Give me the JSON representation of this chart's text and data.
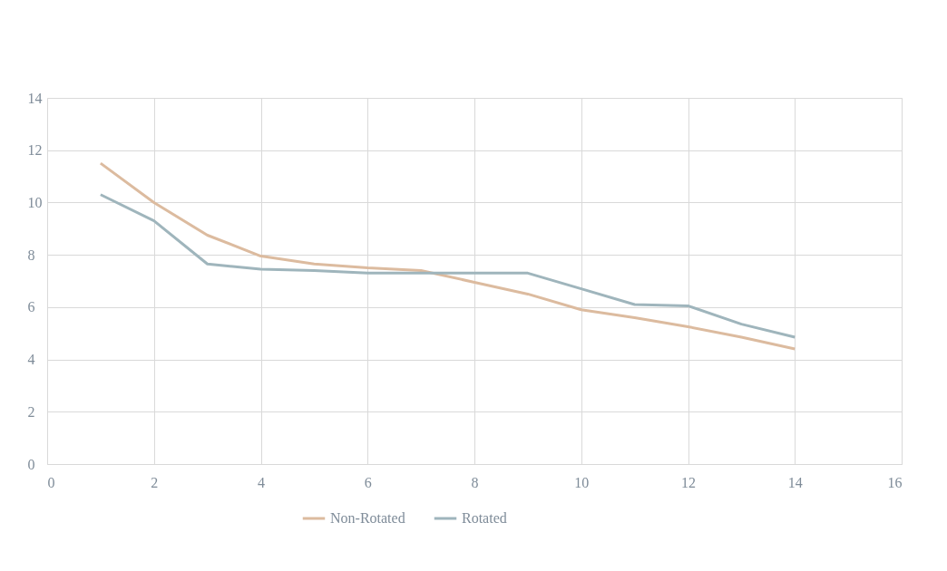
{
  "chart_data": {
    "type": "line",
    "x": [
      1,
      2,
      3,
      4,
      5,
      6,
      7,
      8,
      9,
      10,
      11,
      12,
      13,
      14
    ],
    "series": [
      {
        "name": "Non-Rotated",
        "color": "#dcbb9f",
        "values": [
          11.5,
          10.0,
          8.75,
          7.95,
          7.65,
          7.5,
          7.4,
          6.95,
          6.5,
          5.9,
          5.6,
          5.25,
          4.85,
          4.4
        ]
      },
      {
        "name": "Rotated",
        "color": "#9fb5bc",
        "values": [
          10.3,
          9.3,
          7.65,
          7.45,
          7.4,
          7.3,
          7.3,
          7.3,
          7.3,
          6.7,
          6.1,
          6.05,
          5.35,
          4.85
        ]
      }
    ],
    "xlim": [
      0,
      16
    ],
    "xticks": [
      0,
      2,
      4,
      6,
      8,
      10,
      12,
      14,
      16
    ],
    "ylim": [
      0,
      14
    ],
    "yticks": [
      0,
      2,
      4,
      6,
      8,
      10,
      12,
      14
    ],
    "grid": true,
    "legend": "bottom",
    "marker": "none",
    "line_style": "solid"
  }
}
